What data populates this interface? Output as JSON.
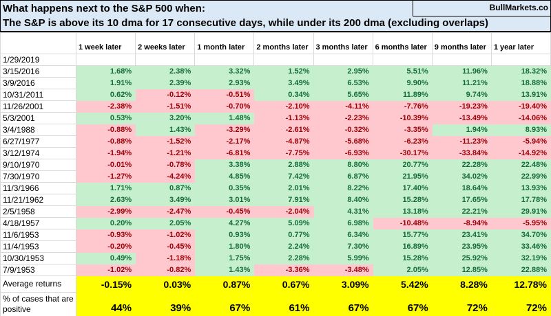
{
  "header": {
    "title": "What happens next to the S&P 500 when:",
    "subtitle": "The S&P is above its 10 dma for 17 consecutive days, while under its 200 dma (excluding overlaps)",
    "brand": "BullMarkets.co"
  },
  "colors": {
    "positive_bg": "#c6efce",
    "positive_text": "#146c36",
    "negative_bg": "#ffc7ce",
    "negative_text": "#9c0006",
    "summary_bg": "#ffff00",
    "title_bg": "#dbe9f6",
    "grid": "#d9d9d9"
  },
  "chart_data": {
    "type": "table",
    "title": "What happens next to the S&P 500 when: The S&P is above its 10 dma for 17 consecutive days, while under its 200 dma (excluding overlaps)",
    "columns": [
      "1 week later",
      "2 weeks later",
      "1 month later",
      "2 months later",
      "3 months later",
      "6 months later",
      "9 months later",
      "1 year later"
    ],
    "rows": [
      {
        "date": "1/29/2019",
        "values": [
          "",
          "",
          "",
          "",
          "",
          "",
          "",
          ""
        ]
      },
      {
        "date": "3/15/2016",
        "values": [
          "1.68%",
          "2.38%",
          "3.32%",
          "1.52%",
          "2.95%",
          "5.51%",
          "11.96%",
          "18.32%"
        ]
      },
      {
        "date": "3/9/2016",
        "values": [
          "1.91%",
          "2.39%",
          "2.93%",
          "3.49%",
          "6.53%",
          "9.90%",
          "11.21%",
          "18.88%"
        ]
      },
      {
        "date": "10/31/2011",
        "values": [
          "0.62%",
          "-0.12%",
          "-0.51%",
          "0.34%",
          "5.65%",
          "11.89%",
          "9.74%",
          "13.91%"
        ]
      },
      {
        "date": "11/26/2001",
        "values": [
          "-2.38%",
          "-1.51%",
          "-0.70%",
          "-2.10%",
          "-4.11%",
          "-7.76%",
          "-19.23%",
          "-19.40%"
        ]
      },
      {
        "date": "5/3/2001",
        "values": [
          "0.53%",
          "3.20%",
          "1.48%",
          "-1.13%",
          "-2.23%",
          "-10.39%",
          "-13.49%",
          "-14.06%"
        ]
      },
      {
        "date": "3/4/1988",
        "values": [
          "-0.88%",
          "1.43%",
          "-3.29%",
          "-2.61%",
          "-0.32%",
          "-3.35%",
          "1.94%",
          "8.93%"
        ]
      },
      {
        "date": "6/27/1977",
        "values": [
          "-0.88%",
          "-1.52%",
          "-2.17%",
          "-4.87%",
          "-5.68%",
          "-6.23%",
          "-11.23%",
          "-5.94%"
        ]
      },
      {
        "date": "3/12/1974",
        "values": [
          "-1.94%",
          "-1.21%",
          "-6.81%",
          "-7.75%",
          "-6.93%",
          "-30.17%",
          "-33.84%",
          "-14.92%"
        ]
      },
      {
        "date": "9/10/1970",
        "values": [
          "-0.01%",
          "-0.78%",
          "3.38%",
          "2.88%",
          "8.80%",
          "20.77%",
          "22.28%",
          "22.48%"
        ]
      },
      {
        "date": "7/30/1970",
        "values": [
          "-1.27%",
          "-4.24%",
          "4.85%",
          "7.42%",
          "6.87%",
          "21.95%",
          "34.02%",
          "22.99%"
        ]
      },
      {
        "date": "11/3/1966",
        "values": [
          "1.71%",
          "0.87%",
          "0.35%",
          "2.01%",
          "8.22%",
          "17.40%",
          "18.64%",
          "13.93%"
        ]
      },
      {
        "date": "11/21/1962",
        "values": [
          "2.63%",
          "3.49%",
          "3.01%",
          "7.91%",
          "8.40%",
          "15.28%",
          "17.65%",
          "17.78%"
        ]
      },
      {
        "date": "2/5/1958",
        "values": [
          "-2.99%",
          "-2.47%",
          "-0.45%",
          "-2.04%",
          "4.31%",
          "13.18%",
          "22.21%",
          "29.91%"
        ]
      },
      {
        "date": "4/18/1957",
        "values": [
          "0.20%",
          "2.05%",
          "4.27%",
          "5.09%",
          "6.98%",
          "-10.48%",
          "-8.94%",
          "-5.95%"
        ]
      },
      {
        "date": "11/6/1953",
        "values": [
          "-0.93%",
          "-1.02%",
          "0.93%",
          "0.77%",
          "6.34%",
          "15.77%",
          "23.41%",
          "34.70%"
        ]
      },
      {
        "date": "11/4/1953",
        "values": [
          "-0.20%",
          "-0.45%",
          "1.80%",
          "2.24%",
          "7.30%",
          "16.89%",
          "23.95%",
          "33.46%"
        ]
      },
      {
        "date": "10/30/1953",
        "values": [
          "0.49%",
          "-1.18%",
          "1.75%",
          "2.28%",
          "5.99%",
          "15.28%",
          "25.92%",
          "32.19%"
        ]
      },
      {
        "date": "7/9/1953",
        "values": [
          "-1.02%",
          "-0.82%",
          "1.43%",
          "-3.36%",
          "-3.48%",
          "2.05%",
          "12.85%",
          "22.88%"
        ]
      }
    ],
    "summary": {
      "average_label": "Average returns",
      "average_values": [
        "-0.15%",
        "0.03%",
        "0.87%",
        "0.67%",
        "3.09%",
        "5.42%",
        "8.28%",
        "12.78%"
      ],
      "positive_label": "% of cases that are positive",
      "positive_values": [
        "44%",
        "39%",
        "67%",
        "61%",
        "67%",
        "67%",
        "72%",
        "72%"
      ]
    },
    "layout": {
      "conditional_format": "positive=green, negative=pink, summary=yellow",
      "grid": true
    }
  }
}
